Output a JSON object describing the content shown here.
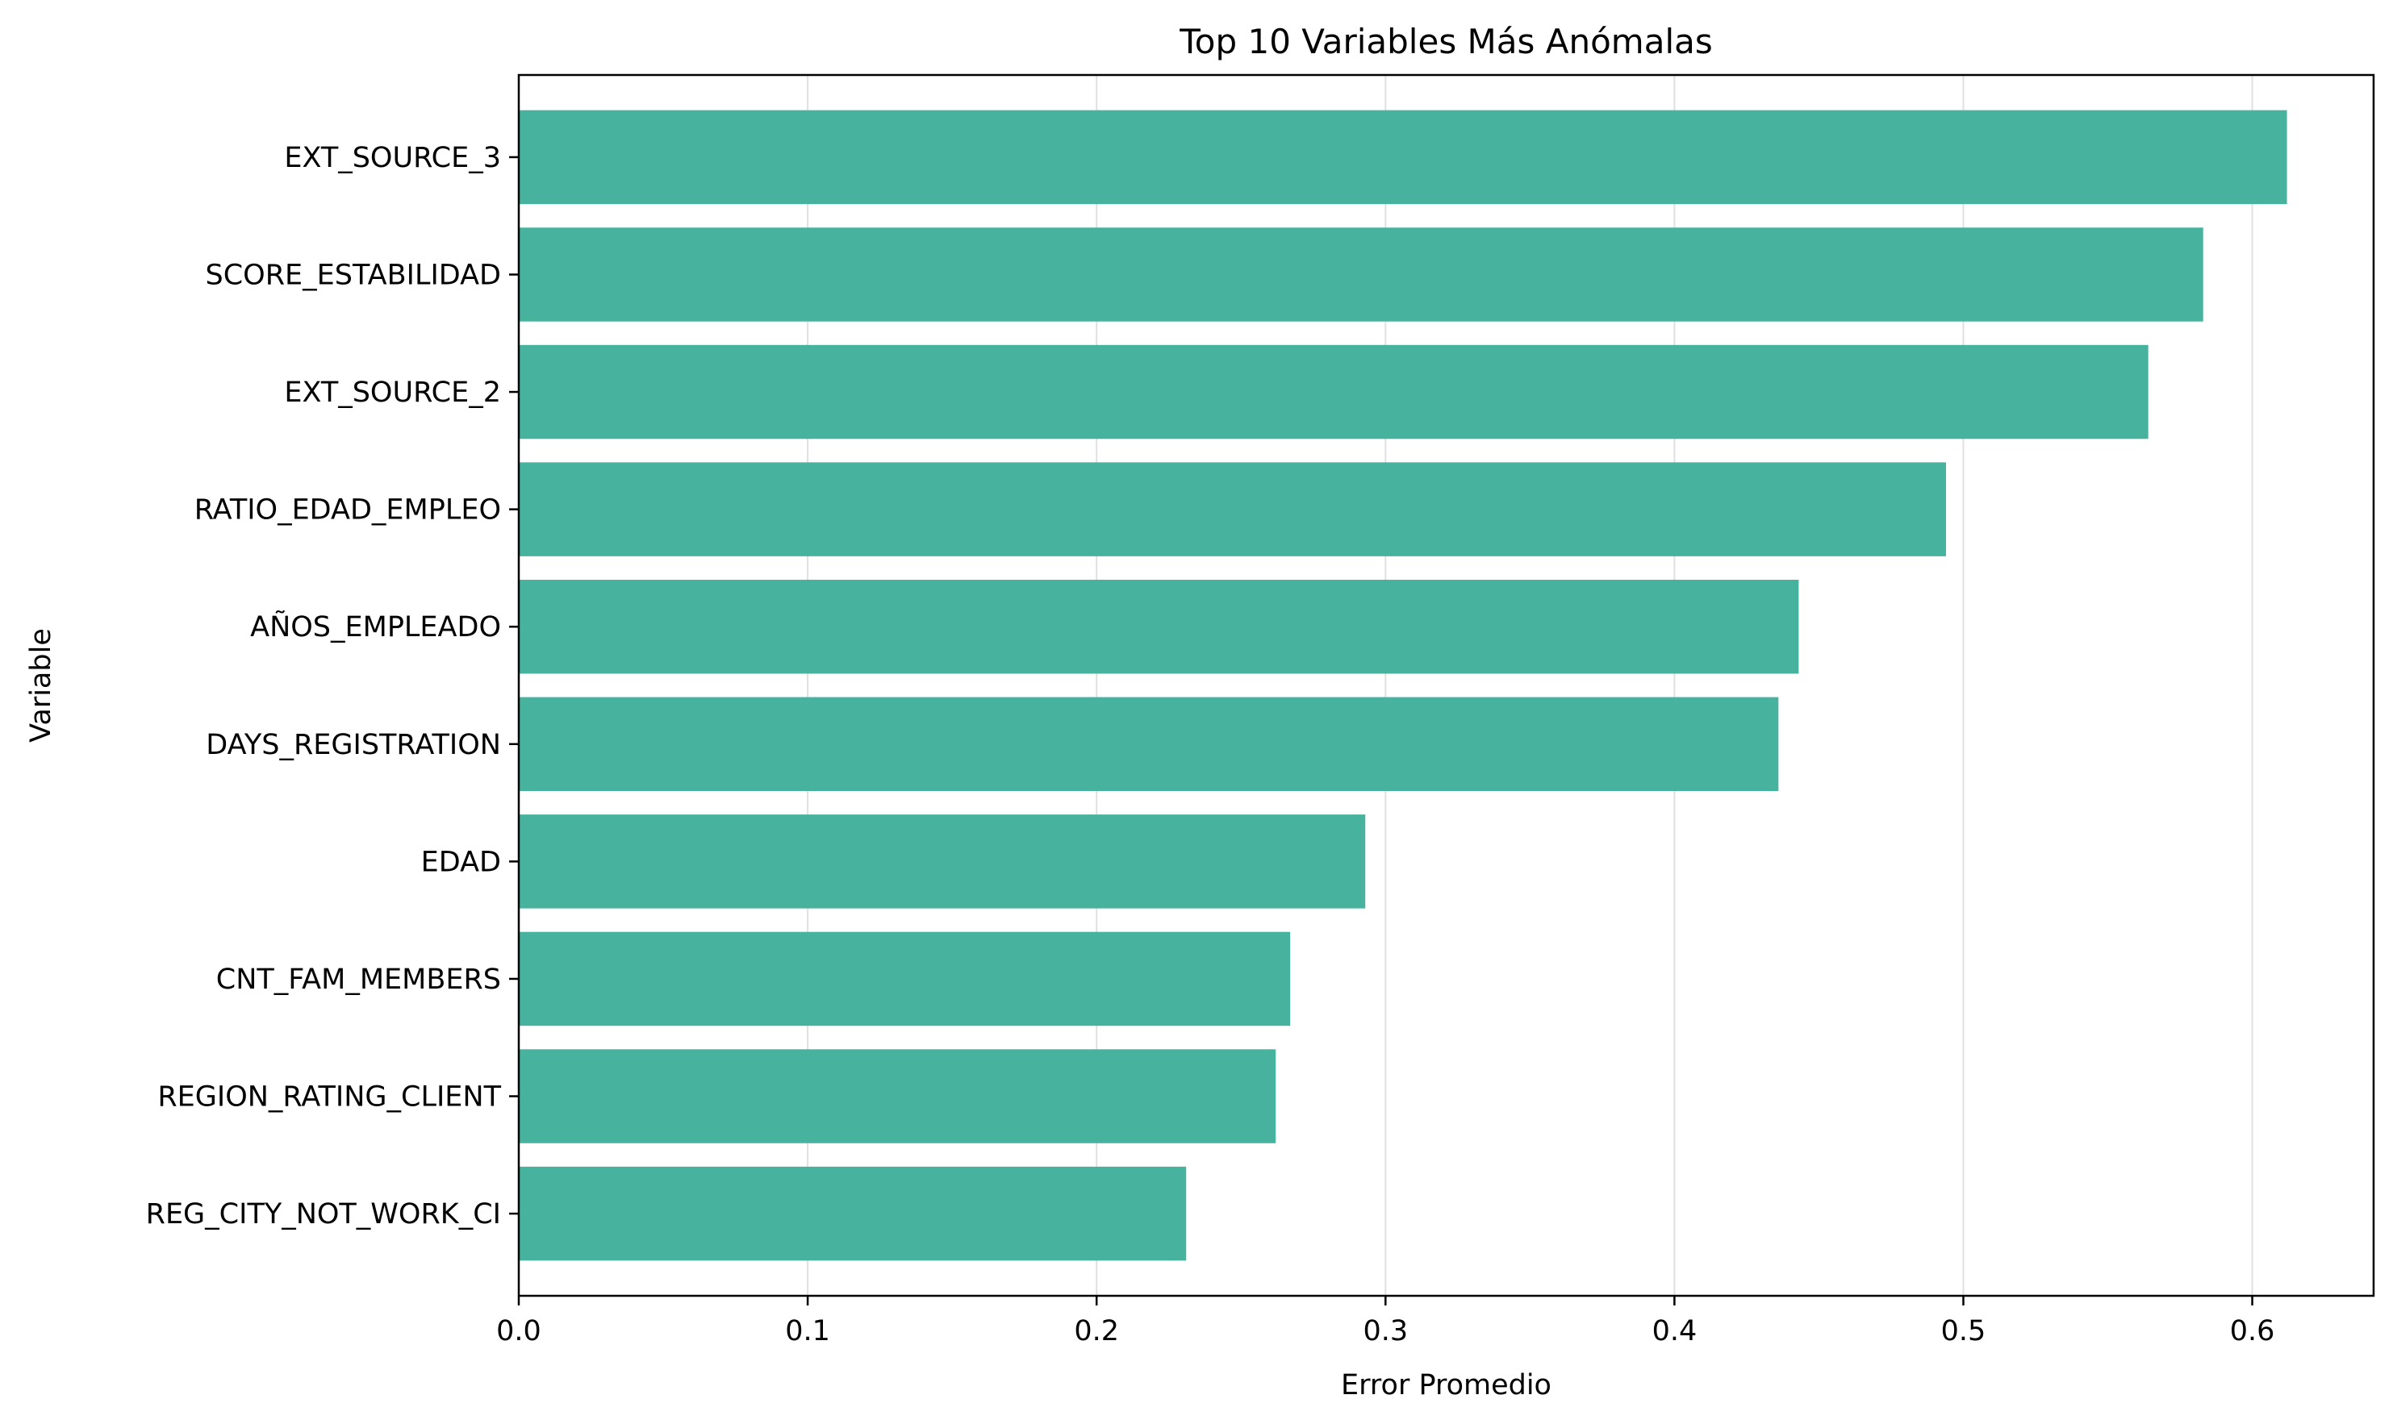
{
  "chart_data": {
    "type": "bar",
    "orientation": "horizontal",
    "title": "Top 10 Variables Más Anómalas",
    "xlabel": "Error Promedio",
    "ylabel": "Variable",
    "categories": [
      "EXT_SOURCE_3",
      "SCORE_ESTABILIDAD",
      "EXT_SOURCE_2",
      "RATIO_EDAD_EMPLEO",
      "AÑOS_EMPLEADO",
      "DAYS_REGISTRATION",
      "EDAD",
      "CNT_FAM_MEMBERS",
      "REGION_RATING_CLIENT",
      "REG_CITY_NOT_WORK_CI"
    ],
    "values": [
      0.612,
      0.583,
      0.564,
      0.494,
      0.443,
      0.436,
      0.293,
      0.267,
      0.262,
      0.231
    ],
    "xlim": [
      0,
      0.642
    ],
    "xticks": [
      0.0,
      0.1,
      0.2,
      0.3,
      0.4,
      0.5,
      0.6
    ],
    "xtick_labels": [
      "0.0",
      "0.1",
      "0.2",
      "0.3",
      "0.4",
      "0.5",
      "0.6"
    ],
    "grid": "vertical",
    "bar_color": "#47b29d"
  }
}
